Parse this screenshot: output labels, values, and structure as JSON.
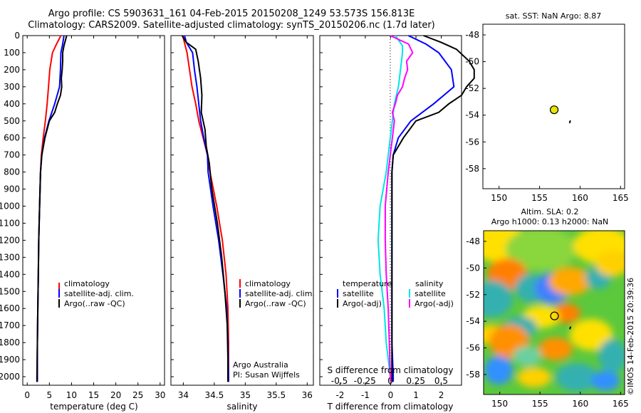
{
  "header": {
    "line1": "Argo profile: CS 5903631_161 04-Feb-2015 20150208_1249 53.573S 156.813E",
    "line2": "Climatology: CARS2009. Satellite-adjusted climatology: synTS_20150206.nc (1.7d later)"
  },
  "colors": {
    "climatology": "#ff0000",
    "satellite": "#0000ff",
    "argo": "#000000",
    "satellite_salinity": "#00e5e5",
    "argo_salinity_adj": "#ff00ff"
  },
  "panels": {
    "temperature": {
      "xlabel": "temperature (deg C)",
      "legend": [
        "climatology",
        "satellite-adj. clim.",
        "Argo(..raw -QC)"
      ]
    },
    "salinity": {
      "xlabel": "salinity",
      "legend": [
        "climatology",
        "satellite-adj. clim.",
        "Argo(..raw -QC)"
      ],
      "credit1": "Argo Australia",
      "credit2": "PI: Susan Wijffels"
    },
    "difference": {
      "xlabel": "T difference from climatology",
      "top_label": "S difference from climatology",
      "legend_temp_title": "temperature",
      "legend_sal_title": "salinity",
      "legend_temp": [
        "satellite",
        "Argo(-adj)"
      ],
      "legend_sal": [
        "satellite",
        "Argo(-adj)"
      ]
    },
    "map_sst": {
      "title": "sat. SST: NaN Argo: 8.87"
    },
    "map_sla": {
      "title1": "Altim. SLA: 0.2",
      "title2": "Argo h1000: 0.13 h2000: NaN",
      "watermark": "©IMOS 14-Feb-2015 20:39:36"
    }
  },
  "chart_data": [
    {
      "type": "line",
      "name": "temperature profile",
      "xlabel": "temperature (deg C)",
      "ylabel": "",
      "xlim": [
        -1,
        31
      ],
      "ylim": [
        2050,
        0
      ],
      "xticks": [
        0,
        5,
        10,
        15,
        20,
        25,
        30
      ],
      "yticks": [
        0,
        100,
        200,
        300,
        400,
        500,
        600,
        700,
        800,
        900,
        1000,
        1100,
        1200,
        1300,
        1400,
        1500,
        1600,
        1700,
        1800,
        1900,
        2000
      ],
      "series": [
        {
          "name": "climatology",
          "color": "#ff0000",
          "depth": [
            0,
            50,
            100,
            200,
            300,
            400,
            500,
            600,
            700,
            800,
            1000,
            1200,
            1400,
            1600,
            1800,
            2000,
            2030
          ],
          "values": [
            7.6,
            6.6,
            5.7,
            5.1,
            4.8,
            4.5,
            4.1,
            3.6,
            3.2,
            3.0,
            2.8,
            2.6,
            2.5,
            2.4,
            2.3,
            2.2,
            2.2
          ]
        },
        {
          "name": "satellite-adj. clim.",
          "color": "#0000ff",
          "depth": [
            0,
            50,
            100,
            200,
            300,
            400,
            500,
            600,
            700,
            800,
            1000,
            1200,
            1400,
            1600,
            1800,
            2000,
            2030
          ],
          "values": [
            8.3,
            8.0,
            7.6,
            7.5,
            7.3,
            6.2,
            4.9,
            3.9,
            3.3,
            3.0,
            2.8,
            2.6,
            2.5,
            2.4,
            2.3,
            2.3,
            2.3
          ]
        },
        {
          "name": "Argo(..raw -QC)",
          "color": "#000000",
          "depth": [
            0,
            30,
            60,
            100,
            150,
            200,
            250,
            300,
            350,
            400,
            450,
            500,
            600,
            700,
            800,
            1000,
            1200,
            1400,
            1600,
            1800,
            2000,
            2030
          ],
          "values": [
            8.9,
            8.6,
            8.3,
            8.0,
            8.0,
            7.9,
            7.7,
            7.8,
            7.5,
            6.8,
            6.2,
            5.0,
            4.0,
            3.3,
            3.0,
            2.8,
            2.6,
            2.5,
            2.4,
            2.3,
            2.2,
            2.2
          ]
        }
      ]
    },
    {
      "type": "line",
      "name": "salinity profile",
      "xlabel": "salinity",
      "ylabel": "",
      "xlim": [
        33.8,
        36.1
      ],
      "ylim": [
        2050,
        0
      ],
      "xticks": [
        34,
        34.5,
        35,
        35.5,
        36
      ],
      "series": [
        {
          "name": "climatology",
          "color": "#ff0000",
          "depth": [
            0,
            100,
            200,
            300,
            400,
            500,
            600,
            700,
            800,
            1000,
            1200,
            1400,
            1600,
            1800,
            2000,
            2030
          ],
          "values": [
            33.99,
            34.06,
            34.1,
            34.14,
            34.2,
            34.25,
            34.32,
            34.39,
            34.43,
            34.54,
            34.63,
            34.69,
            34.72,
            34.73,
            34.73,
            34.73
          ]
        },
        {
          "name": "satellite-adj. clim.",
          "color": "#0000ff",
          "depth": [
            0,
            40,
            100,
            200,
            300,
            400,
            500,
            600,
            700,
            800,
            1000,
            1200,
            1400,
            1600,
            1800,
            2000,
            2030
          ],
          "values": [
            34.02,
            34.05,
            34.15,
            34.18,
            34.22,
            34.25,
            34.28,
            34.33,
            34.39,
            34.4,
            34.48,
            34.57,
            34.64,
            34.7,
            34.72,
            34.73,
            34.73
          ]
        },
        {
          "name": "Argo(..raw -QC)",
          "color": "#000000",
          "depth": [
            0,
            40,
            80,
            150,
            250,
            350,
            450,
            550,
            650,
            750,
            900,
            1100,
            1300,
            1500,
            1700,
            1900,
            2030
          ],
          "values": [
            33.98,
            34.05,
            34.2,
            34.24,
            34.28,
            34.3,
            34.29,
            34.35,
            34.37,
            34.42,
            34.46,
            34.55,
            34.62,
            34.67,
            34.71,
            34.72,
            34.72
          ]
        }
      ]
    },
    {
      "type": "line",
      "name": "difference from climatology",
      "xlabel": "T difference from climatology",
      "ylabel": "",
      "xlim": [
        -2.8,
        2.8
      ],
      "ylim": [
        2050,
        0
      ],
      "xticks": [
        -2,
        -1,
        0,
        1,
        2
      ],
      "xticks_top_label": "S difference from climatology",
      "xticks_top": [
        -0.5,
        -0.25,
        0,
        0.25,
        0.5
      ],
      "series": [
        {
          "name": "temperature satellite",
          "color": "#0000ff",
          "depth": [
            0,
            50,
            100,
            200,
            300,
            400,
            500,
            600,
            700,
            800,
            1000,
            1200,
            1400,
            1600,
            1800,
            2000,
            2030
          ],
          "values": [
            0.7,
            1.4,
            1.9,
            2.4,
            2.5,
            1.7,
            0.8,
            0.3,
            0.1,
            0.05,
            0.05,
            0.05,
            0.05,
            0.05,
            0.05,
            0.1,
            0.1
          ]
        },
        {
          "name": "temperature Argo(-adj)",
          "color": "#000000",
          "depth": [
            0,
            40,
            80,
            150,
            200,
            250,
            300,
            350,
            400,
            450,
            500,
            600,
            700,
            800,
            1000,
            1200,
            1600,
            2000,
            2030
          ],
          "values": [
            1.3,
            2.0,
            2.6,
            3.1,
            3.3,
            3.3,
            3.0,
            2.8,
            2.3,
            1.9,
            1.0,
            0.5,
            0.1,
            0.05,
            0.05,
            0.05,
            0.05,
            0.05,
            0.05
          ]
        },
        {
          "name": "salinity satellite",
          "color": "#00e5e5",
          "depth": [
            0,
            60,
            100,
            200,
            300,
            400,
            500,
            600,
            700,
            800,
            1000,
            1200,
            1400,
            1600,
            1800,
            2000,
            2030
          ],
          "values": [
            0.05,
            0.12,
            0.12,
            0.1,
            0.08,
            0.04,
            0.02,
            0.0,
            -0.02,
            -0.04,
            -0.1,
            -0.12,
            -0.1,
            -0.06,
            -0.04,
            0.0,
            0.0
          ]
        },
        {
          "name": "salinity Argo(-adj)",
          "color": "#ff00ff",
          "depth": [
            0,
            50,
            100,
            150,
            200,
            250,
            300,
            350,
            400,
            450,
            500,
            550,
            600,
            700,
            800,
            1000,
            1200,
            1400,
            1600,
            1800,
            2000,
            2030
          ],
          "values": [
            0.0,
            0.18,
            0.22,
            0.16,
            0.17,
            0.14,
            0.12,
            0.07,
            0.05,
            0.02,
            0.04,
            0.03,
            0.02,
            0.0,
            -0.02,
            -0.05,
            -0.05,
            -0.04,
            -0.02,
            -0.01,
            0.0,
            0.0
          ]
        }
      ]
    },
    {
      "type": "scatter",
      "name": "SST map",
      "xlim": [
        148,
        165.5
      ],
      "ylim": [
        -59.5,
        -47.2
      ],
      "xticks": [
        150,
        155,
        160,
        165
      ],
      "yticks": [
        -48,
        -50,
        -52,
        -54,
        -56,
        -58
      ],
      "points": [
        {
          "x": 156.8,
          "y": -53.6,
          "label": "Argo"
        }
      ],
      "track": [
        [
          158.7,
          -54.6
        ],
        [
          158.8,
          -54.4
        ]
      ]
    },
    {
      "type": "heatmap",
      "name": "SLA map",
      "xlim": [
        148,
        165.5
      ],
      "ylim": [
        -59.5,
        -47.2
      ],
      "xticks": [
        150,
        155,
        160,
        165
      ],
      "yticks": [
        -48,
        -50,
        -52,
        -54,
        -56,
        -58
      ],
      "points": [
        {
          "x": 156.8,
          "y": -53.6,
          "label": "Argo"
        }
      ],
      "track": [
        [
          158.7,
          -54.6
        ],
        [
          158.8,
          -54.4
        ]
      ]
    }
  ]
}
